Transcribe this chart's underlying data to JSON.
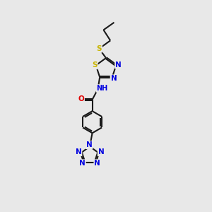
{
  "background_color": "#e8e8e8",
  "bond_color": "#1a1a1a",
  "atom_colors": {
    "S": "#c8b400",
    "N": "#0000e0",
    "O": "#e00000",
    "H": "#008080",
    "C": "#1a1a1a"
  },
  "figsize": [
    3.0,
    3.0
  ],
  "dpi": 100,
  "lw": 1.5,
  "fs": 7.5,
  "dbl_off": 0.055
}
